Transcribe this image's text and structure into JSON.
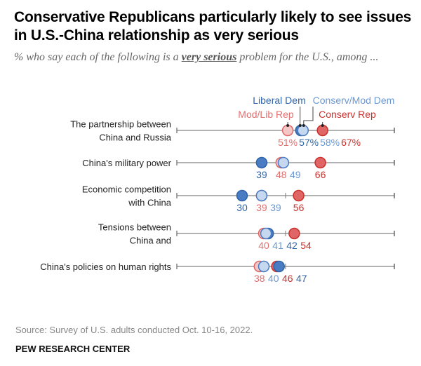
{
  "header": {
    "title": "Conservative Republicans particularly likely to see issues in U.S.-China relationship as very serious",
    "subtitle_pre": "% who say each of the following is a ",
    "subtitle_em": "very serious",
    "subtitle_post": " problem for the U.S., among ..."
  },
  "footer": {
    "source": "Source: Survey of U.S. adults conducted Oct. 10-16, 2022.",
    "brand": "PEW RESEARCH CENTER"
  },
  "chart_data": {
    "type": "scatter",
    "subtype": "dot-plot",
    "title": "Conservative Republicans particularly likely to see issues in U.S.-China relationship as very serious",
    "xlim": [
      0,
      100
    ],
    "xunit": "%",
    "series": [
      {
        "key": "mod_lib_rep",
        "name": "Mod/Lib Rep",
        "color": "#e06666",
        "fill": "#f4c7c7"
      },
      {
        "key": "conserv_rep",
        "name": "Conserv Rep",
        "color": "#c9302c",
        "fill": "#e06666"
      },
      {
        "key": "liberal_dem",
        "name": "Liberal Dem",
        "color": "#2f64a8",
        "fill": "#4a7cc4"
      },
      {
        "key": "conserv_mod_dem",
        "name": "Conserv/Mod Dem",
        "color": "#4a7cc4",
        "fill": "#c6d8ef"
      }
    ],
    "label_colors": {
      "mod_lib_rep": "#e36e6e",
      "conserv_rep": "#c9302c",
      "liberal_dem": "#2f64a8",
      "conserv_mod_dem": "#6a98d4"
    },
    "categories": [
      {
        "label_lines": [
          "The partnership between",
          "China and Russia"
        ],
        "values": {
          "mod_lib_rep": 51,
          "liberal_dem": 57,
          "conserv_mod_dem": 58,
          "conserv_rep": 67
        },
        "label_order": [
          "mod_lib_rep",
          "liberal_dem",
          "conserv_mod_dem",
          "conserv_rep"
        ],
        "show_percent": true,
        "midtick": false
      },
      {
        "label_lines": [
          "China's military power"
        ],
        "values": {
          "liberal_dem": 39,
          "mod_lib_rep": 48,
          "conserv_mod_dem": 49,
          "conserv_rep": 66
        },
        "label_order": [
          "liberal_dem",
          "mod_lib_rep",
          "conserv_mod_dem",
          "conserv_rep"
        ],
        "show_percent": false,
        "midtick": false
      },
      {
        "label_lines": [
          "Economic competition",
          "with China"
        ],
        "values": {
          "liberal_dem": 30,
          "mod_lib_rep": 39,
          "conserv_mod_dem": 39,
          "conserv_rep": 56
        },
        "label_order": [
          "liberal_dem",
          "mod_lib_rep",
          "conserv_mod_dem",
          "conserv_rep"
        ],
        "show_percent": false,
        "midtick": true
      },
      {
        "label_lines": [
          "Tensions between",
          "China and"
        ],
        "values": {
          "mod_lib_rep": 40,
          "conserv_mod_dem": 41,
          "liberal_dem": 42,
          "conserv_rep": 54
        },
        "label_order": [
          "mod_lib_rep",
          "conserv_mod_dem",
          "liberal_dem",
          "conserv_rep"
        ],
        "show_percent": false,
        "midtick": true
      },
      {
        "label_lines": [
          "China's policies on human rights"
        ],
        "values": {
          "mod_lib_rep": 38,
          "conserv_mod_dem": 40,
          "conserv_rep": 46,
          "liberal_dem": 47
        },
        "label_order": [
          "mod_lib_rep",
          "conserv_mod_dem",
          "conserv_rep",
          "liberal_dem"
        ],
        "show_percent": false,
        "midtick": true
      }
    ],
    "legend_placement": "top, annotated on first row"
  }
}
